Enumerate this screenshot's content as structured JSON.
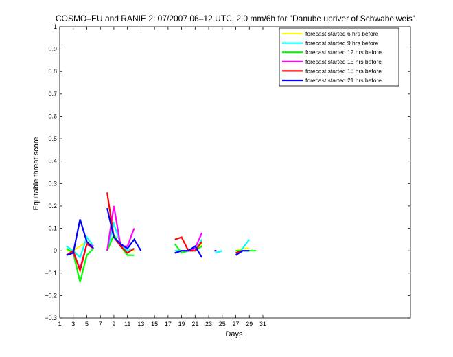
{
  "chart_data": {
    "type": "line",
    "title": "COSMO–EU and RANIE 2: 07/2007 06–12 UTC, 2.0 mm/6h for \"Danube upriver of Schwabelweis\"",
    "xlabel": "Days",
    "ylabel": "Equitable threat score",
    "xlim": [
      1,
      31
    ],
    "ylim": [
      -0.3,
      1.0
    ],
    "x_ticks": [
      1,
      3,
      5,
      7,
      9,
      11,
      13,
      15,
      17,
      19,
      21,
      23,
      25,
      27,
      29,
      31
    ],
    "y_ticks": [
      -0.3,
      -0.2,
      -0.1,
      0,
      0.1,
      0.2,
      0.3,
      0.4,
      0.5,
      0.6,
      0.7,
      0.8,
      0.9,
      1
    ],
    "y_tick_labels": [
      "−0.3",
      "−0.2",
      "−0.1",
      "0",
      "0.1",
      "0.2",
      "0.3",
      "0.4",
      "0.5",
      "0.6",
      "0.7",
      "0.8",
      "0.9",
      "1"
    ],
    "legend_position": "top-right",
    "grid": false,
    "series": [
      {
        "name": "forecast started 6 hrs before",
        "color": "#ffff00",
        "segments": [
          [
            [
              2,
              0.0
            ],
            [
              3,
              0.0
            ],
            [
              4,
              0.02
            ],
            [
              5,
              0.04
            ],
            [
              6,
              0.02
            ]
          ],
          [
            [
              8,
              0.0
            ],
            [
              9,
              0.07
            ],
            [
              10,
              0.02
            ],
            [
              11,
              0.0
            ],
            [
              12,
              0.0
            ]
          ],
          [
            [
              18,
              0.0
            ],
            [
              19,
              0.0
            ],
            [
              20,
              0.0
            ],
            [
              21,
              0.0
            ],
            [
              22,
              0.03
            ]
          ],
          [
            [
              27,
              0.0
            ],
            [
              28,
              0.01
            ],
            [
              29,
              0.01
            ]
          ]
        ]
      },
      {
        "name": "forecast started 9 hrs before",
        "color": "#00ffff",
        "segments": [
          [
            [
              2,
              0.02
            ],
            [
              3,
              0.0
            ],
            [
              4,
              -0.03
            ],
            [
              5,
              0.06
            ],
            [
              6,
              0.02
            ]
          ],
          [
            [
              8,
              0.0
            ],
            [
              9,
              0.12
            ],
            [
              10,
              0.03
            ],
            [
              11,
              0.0
            ],
            [
              12,
              0.01
            ]
          ],
          [
            [
              18,
              0.0
            ],
            [
              19,
              0.0
            ],
            [
              20,
              0.0
            ],
            [
              21,
              0.0
            ],
            [
              22,
              0.05
            ]
          ],
          [
            [
              24,
              -0.01
            ],
            [
              25,
              0.0
            ]
          ],
          [
            [
              27,
              -0.02
            ],
            [
              28,
              0.01
            ],
            [
              29,
              0.05
            ]
          ]
        ]
      },
      {
        "name": "forecast started 12 hrs before",
        "color": "#00ff00",
        "segments": [
          [
            [
              2,
              0.01
            ],
            [
              3,
              -0.01
            ],
            [
              4,
              -0.14
            ],
            [
              5,
              -0.02
            ],
            [
              6,
              0.01
            ]
          ],
          [
            [
              8,
              0.0
            ],
            [
              9,
              0.07
            ],
            [
              10,
              0.02
            ],
            [
              11,
              -0.02
            ],
            [
              12,
              -0.02
            ]
          ],
          [
            [
              18,
              0.03
            ],
            [
              19,
              -0.01
            ],
            [
              20,
              0.0
            ],
            [
              21,
              0.0
            ],
            [
              22,
              0.02
            ]
          ],
          [
            [
              27,
              0.0
            ],
            [
              28,
              0.0
            ],
            [
              29,
              0.0
            ],
            [
              30,
              0.0
            ]
          ]
        ]
      },
      {
        "name": "forecast started 15 hrs before",
        "color": "#ff00ff",
        "segments": [
          [
            [
              2,
              -0.02
            ],
            [
              3,
              -0.01
            ],
            [
              4,
              -0.08
            ],
            [
              5,
              0.03
            ],
            [
              6,
              0.02
            ]
          ],
          [
            [
              8,
              0.0
            ],
            [
              9,
              0.2
            ],
            [
              10,
              0.02
            ],
            [
              11,
              0.02
            ],
            [
              12,
              0.1
            ]
          ],
          [
            [
              18,
              -0.01
            ],
            [
              19,
              0.0
            ],
            [
              20,
              0.0
            ],
            [
              21,
              0.01
            ],
            [
              22,
              0.08
            ]
          ],
          [
            [
              27,
              -0.01
            ],
            [
              28,
              0.0
            ]
          ]
        ]
      },
      {
        "name": "forecast started 18 hrs before",
        "color": "#ff0000",
        "segments": [
          [
            [
              2,
              -0.02
            ],
            [
              3,
              0.0
            ],
            [
              4,
              -0.09
            ],
            [
              5,
              0.03
            ],
            [
              6,
              0.01
            ]
          ],
          [
            [
              8,
              0.26
            ],
            [
              9,
              0.06
            ],
            [
              10,
              0.02
            ],
            [
              11,
              -0.01
            ],
            [
              12,
              0.01
            ]
          ],
          [
            [
              18,
              0.05
            ],
            [
              19,
              0.06
            ],
            [
              20,
              0.0
            ],
            [
              21,
              0.0
            ],
            [
              22,
              0.04
            ]
          ],
          [
            [
              27,
              -0.01
            ],
            [
              28,
              0.0
            ]
          ]
        ]
      },
      {
        "name": "forecast started 21 hrs before",
        "color": "#0000ff",
        "segments": [
          [
            [
              2,
              -0.02
            ],
            [
              3,
              -0.01
            ],
            [
              4,
              0.14
            ],
            [
              5,
              0.04
            ],
            [
              6,
              0.01
            ]
          ],
          [
            [
              8,
              0.19
            ],
            [
              9,
              0.06
            ],
            [
              10,
              0.03
            ],
            [
              11,
              0.01
            ],
            [
              12,
              0.05
            ],
            [
              13,
              0.0
            ]
          ],
          [
            [
              18,
              -0.01
            ],
            [
              19,
              0.0
            ],
            [
              20,
              0.0
            ],
            [
              21,
              0.02
            ],
            [
              22,
              -0.03
            ]
          ],
          [
            [
              24,
              0.0
            ]
          ],
          [
            [
              27,
              -0.02
            ],
            [
              28,
              0.0
            ],
            [
              29,
              0.0
            ]
          ]
        ]
      }
    ]
  }
}
